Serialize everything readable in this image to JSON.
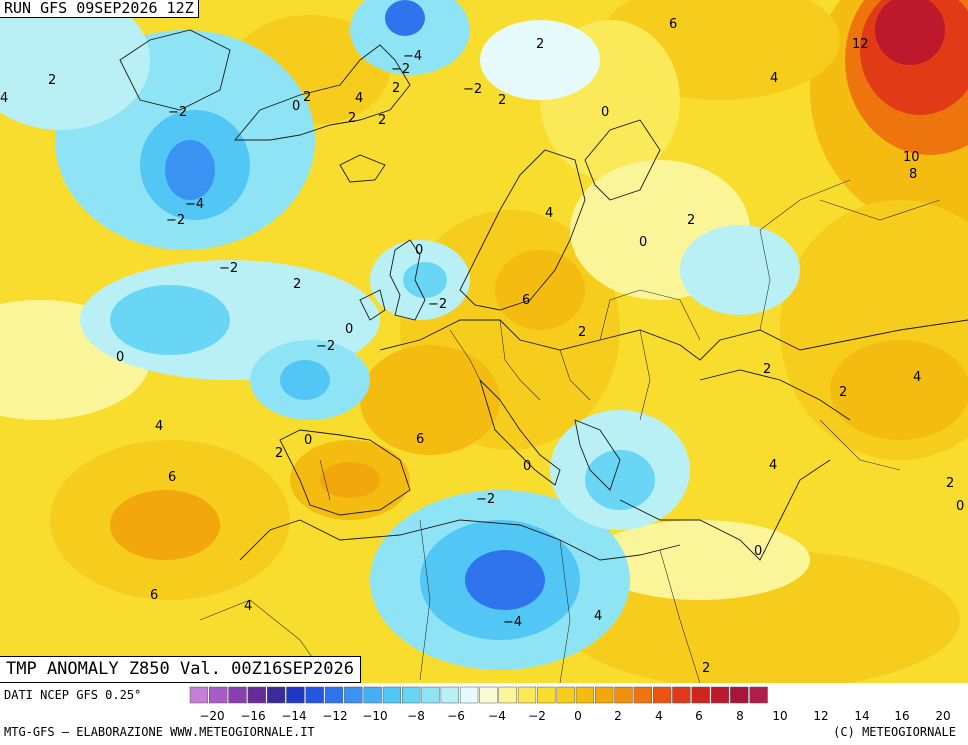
{
  "run_label": "RUN GFS 09SEP2026 12Z",
  "title_label": "TMP ANOMALY Z850 Val. 00Z16SEP2026",
  "footer": {
    "source": "DATI NCEP GFS 0.25°",
    "credit": "MTG-GFS — ELABORAZIONE WWW.METEOGIORNALE.IT",
    "copyright": "(C) METEOGIORNALE"
  },
  "colorbar": {
    "colors": [
      "#c77ed8",
      "#a85cc6",
      "#8a3fb0",
      "#6a2b9a",
      "#3b2a9a",
      "#1f38c8",
      "#2457e0",
      "#2f74ec",
      "#3a92f2",
      "#45aef4",
      "#52c6f5",
      "#68d6f4",
      "#8ee4f4",
      "#b8f0f6",
      "#e6fafb",
      "#fbfbd2",
      "#fbf59a",
      "#faea5a",
      "#f8dc2e",
      "#f6cd1c",
      "#f4bb10",
      "#f2a70c",
      "#f0900c",
      "#ee740e",
      "#ea5612",
      "#e03a16",
      "#d0241c",
      "#bc1a2c",
      "#a8143a",
      "#b01f4a"
    ],
    "tick_labels": [
      "−20",
      "−16",
      "−14",
      "−12",
      "−10",
      "−8",
      "−6",
      "−4",
      "−2",
      "0",
      "2",
      "4",
      "6",
      "8",
      "10",
      "12",
      "14",
      "16",
      "20"
    ]
  },
  "contour_labels": [
    {
      "text": "2"
    },
    {
      "text": "4"
    },
    {
      "text": "−2"
    },
    {
      "text": "−4"
    },
    {
      "text": "−2"
    },
    {
      "text": "2"
    },
    {
      "text": "0"
    },
    {
      "text": "2"
    },
    {
      "text": "4"
    },
    {
      "text": "2"
    },
    {
      "text": "2"
    },
    {
      "text": "0"
    },
    {
      "text": "−2"
    },
    {
      "text": "2"
    },
    {
      "text": "0"
    },
    {
      "text": "6"
    },
    {
      "text": "4"
    },
    {
      "text": "12"
    },
    {
      "text": "10"
    },
    {
      "text": "8"
    },
    {
      "text": "−2"
    },
    {
      "text": "−4"
    },
    {
      "text": "−2"
    },
    {
      "text": "−2"
    },
    {
      "text": "2"
    },
    {
      "text": "0"
    },
    {
      "text": "−2"
    },
    {
      "text": "0"
    },
    {
      "text": "−2"
    },
    {
      "text": "0"
    },
    {
      "text": "4"
    },
    {
      "text": "2"
    },
    {
      "text": "0"
    },
    {
      "text": "6"
    },
    {
      "text": "2"
    },
    {
      "text": "2"
    },
    {
      "text": "2"
    },
    {
      "text": "4"
    },
    {
      "text": "2"
    },
    {
      "text": "0"
    },
    {
      "text": "6"
    },
    {
      "text": "4"
    },
    {
      "text": "6"
    },
    {
      "text": "4"
    },
    {
      "text": "0"
    },
    {
      "text": "−2"
    },
    {
      "text": "−4"
    },
    {
      "text": "4"
    },
    {
      "text": "2"
    },
    {
      "text": "4"
    },
    {
      "text": "2"
    },
    {
      "text": "0"
    },
    {
      "text": "0"
    }
  ]
}
